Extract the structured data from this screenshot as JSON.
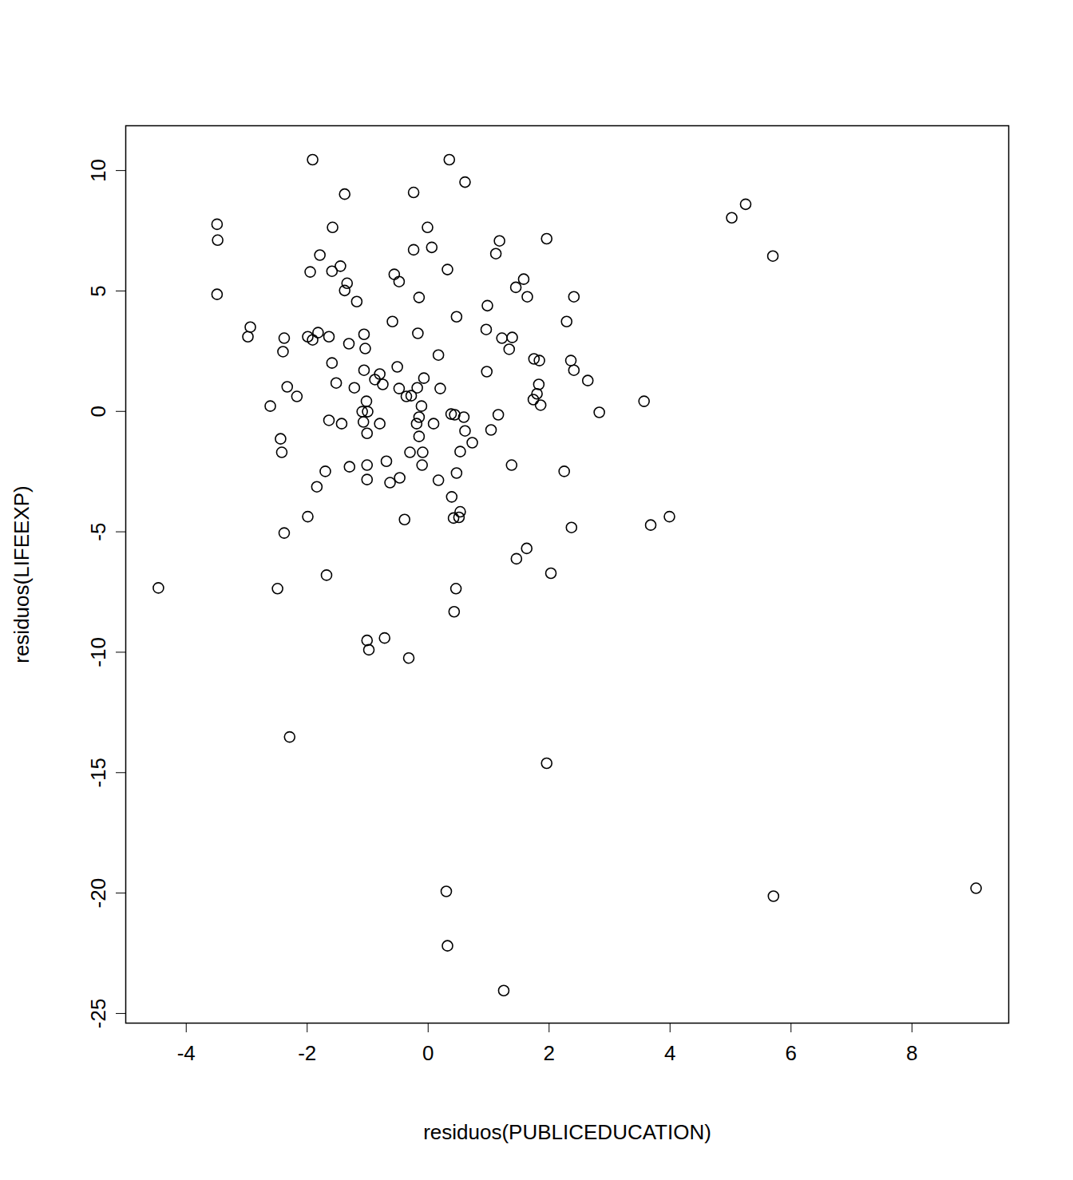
{
  "chart_data": {
    "type": "scatter",
    "x_label": "residuos(PUBLICEDUCATION)",
    "y_label": "residuos(LIFEEXP)",
    "color": "#000000",
    "marker": "circle_open",
    "xlim": [
      -5.0,
      9.6
    ],
    "ylim": [
      -25.4,
      11.86
    ],
    "xticks": [
      -4,
      -2,
      0,
      2,
      4,
      6,
      8
    ],
    "yticks": [
      -25,
      -20,
      -15,
      -10,
      -5,
      0,
      5,
      10
    ],
    "x": [
      -1.91,
      0.35,
      0.61,
      -1.38,
      -0.24,
      5.25,
      5.02,
      -3.49,
      -3.48,
      -1.58,
      -0.01,
      1.18,
      1.96,
      -0.24,
      0.06,
      -1.79,
      1.12,
      5.7,
      -1.45,
      -1.95,
      -1.59,
      0.32,
      -0.56,
      -0.48,
      -1.34,
      -1.38,
      1.58,
      1.45,
      -3.49,
      1.64,
      2.41,
      -0.15,
      -1.18,
      0.98,
      0.47,
      -0.59,
      2.29,
      -2.94,
      -2.98,
      -1.82,
      -1.06,
      -0.17,
      0.96,
      -2.38,
      -1.99,
      -1.91,
      -1.64,
      1.22,
      1.39,
      -1.31,
      -1.04,
      1.34,
      -2.4,
      0.17,
      1.75,
      1.84,
      2.36,
      -1.59,
      -0.51,
      -1.06,
      2.41,
      0.97,
      -0.8,
      -0.88,
      -0.07,
      2.64,
      -1.52,
      -0.75,
      1.83,
      -2.33,
      -1.22,
      -0.48,
      -0.18,
      0.2,
      1.8,
      -2.17,
      -0.36,
      -0.28,
      1.74,
      3.57,
      -1.02,
      -2.61,
      -0.11,
      1.86,
      -1.09,
      -1.0,
      2.83,
      0.38,
      0.44,
      0.59,
      1.16,
      -0.15,
      -1.64,
      -1.07,
      -1.43,
      -0.8,
      -0.19,
      0.09,
      1.04,
      0.61,
      -1.01,
      -0.15,
      -2.44,
      0.73,
      -2.42,
      -0.3,
      -0.09,
      0.53,
      -0.69,
      -1.01,
      -1.3,
      -0.1,
      1.38,
      -1.7,
      2.25,
      0.47,
      -0.47,
      -1.01,
      -0.63,
      0.17,
      -1.84,
      0.39,
      0.53,
      0.51,
      0.42,
      -1.99,
      -0.39,
      3.99,
      -2.38,
      2.37,
      3.68,
      1.63,
      1.46,
      2.03,
      -1.68,
      -4.46,
      -2.49,
      0.46,
      0.43,
      -1.01,
      -0.72,
      -0.98,
      -0.32,
      -2.29,
      1.96,
      0.3,
      9.06,
      5.71,
      0.32,
      1.25
    ],
    "y": [
      10.45,
      10.45,
      9.52,
      9.02,
      9.09,
      8.6,
      8.04,
      7.77,
      7.11,
      7.64,
      7.64,
      7.08,
      7.17,
      6.71,
      6.81,
      6.49,
      6.55,
      6.45,
      6.03,
      5.79,
      5.82,
      5.89,
      5.69,
      5.39,
      5.32,
      5.02,
      5.49,
      5.15,
      4.86,
      4.76,
      4.76,
      4.73,
      4.56,
      4.39,
      3.93,
      3.73,
      3.73,
      3.5,
      3.1,
      3.27,
      3.2,
      3.24,
      3.4,
      3.04,
      3.1,
      2.97,
      3.1,
      3.04,
      3.07,
      2.81,
      2.61,
      2.58,
      2.48,
      2.34,
      2.18,
      2.11,
      2.11,
      2.01,
      1.85,
      1.71,
      1.71,
      1.65,
      1.55,
      1.32,
      1.38,
      1.28,
      1.18,
      1.12,
      1.12,
      1.02,
      0.98,
      0.95,
      0.98,
      0.95,
      0.73,
      0.62,
      0.62,
      0.65,
      0.49,
      0.42,
      0.42,
      0.22,
      0.22,
      0.26,
      -0.01,
      -0.01,
      -0.04,
      -0.11,
      -0.14,
      -0.24,
      -0.14,
      -0.24,
      -0.37,
      -0.44,
      -0.51,
      -0.51,
      -0.51,
      -0.51,
      -0.77,
      -0.81,
      -0.91,
      -1.04,
      -1.14,
      -1.3,
      -1.7,
      -1.7,
      -1.7,
      -1.67,
      -2.07,
      -2.23,
      -2.3,
      -2.23,
      -2.23,
      -2.49,
      -2.49,
      -2.56,
      -2.76,
      -2.83,
      -2.96,
      -2.86,
      -3.13,
      -3.55,
      -4.17,
      -4.4,
      -4.43,
      -4.37,
      -4.49,
      -4.37,
      -5.05,
      -4.82,
      -4.72,
      -5.69,
      -6.12,
      -6.72,
      -6.8,
      -7.33,
      -7.36,
      -7.36,
      -8.32,
      -9.51,
      -9.41,
      -9.9,
      -10.24,
      -13.52,
      -14.61,
      -19.93,
      -19.8,
      -20.13,
      -22.19,
      -24.05
    ]
  }
}
